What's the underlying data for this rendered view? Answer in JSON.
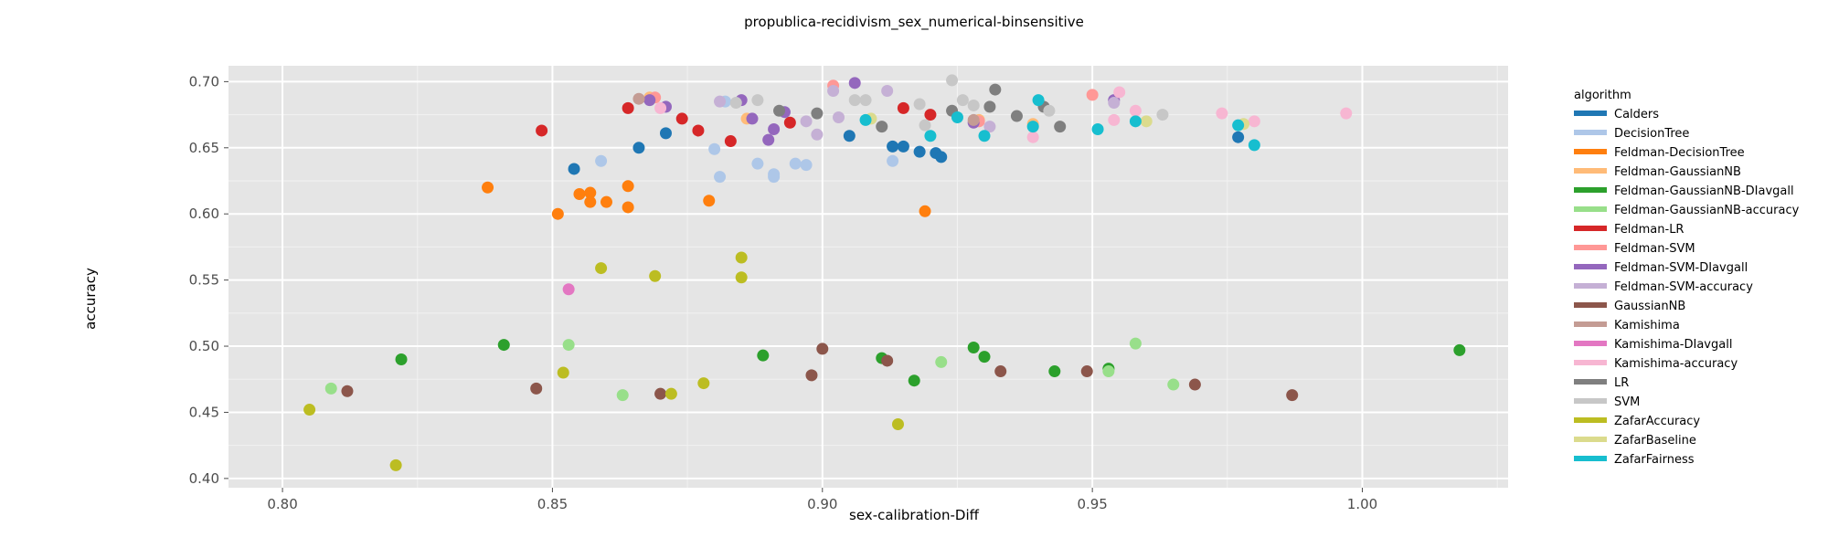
{
  "chart_data": {
    "type": "scatter",
    "title": "propublica-recidivism_sex_numerical-binsensitive",
    "xlabel": "sex-calibration-Diff",
    "ylabel": "accuracy",
    "xlim": [
      0.79,
      1.027
    ],
    "ylim": [
      0.393,
      0.712
    ],
    "xticks": [
      0.8,
      0.85,
      0.9,
      0.95,
      1.0
    ],
    "xtick_labels": [
      "0.80",
      "0.85",
      "0.90",
      "0.95",
      "1.00"
    ],
    "yticks": [
      0.4,
      0.45,
      0.5,
      0.55,
      0.6,
      0.65,
      0.7
    ],
    "ytick_labels": [
      "0.40",
      "0.45",
      "0.50",
      "0.55",
      "0.60",
      "0.65",
      "0.70"
    ],
    "grid": true,
    "legend_title": "algorithm",
    "legend_position": "right",
    "series": [
      {
        "name": "Calders",
        "color": "#1f77b4",
        "points": [
          [
            0.854,
            0.634
          ],
          [
            0.866,
            0.65
          ],
          [
            0.871,
            0.661
          ],
          [
            0.905,
            0.659
          ],
          [
            0.913,
            0.651
          ],
          [
            0.915,
            0.651
          ],
          [
            0.918,
            0.647
          ],
          [
            0.921,
            0.646
          ],
          [
            0.922,
            0.643
          ],
          [
            0.977,
            0.658
          ]
        ]
      },
      {
        "name": "DecisionTree",
        "color": "#aec7e8",
        "points": [
          [
            0.859,
            0.64
          ],
          [
            0.88,
            0.649
          ],
          [
            0.881,
            0.628
          ],
          [
            0.888,
            0.638
          ],
          [
            0.891,
            0.628
          ],
          [
            0.891,
            0.63
          ],
          [
            0.895,
            0.638
          ],
          [
            0.897,
            0.637
          ],
          [
            0.913,
            0.64
          ],
          [
            0.882,
            0.685
          ],
          [
            0.893,
            0.677
          ]
        ]
      },
      {
        "name": "Feldman-DecisionTree",
        "color": "#ff7f0e",
        "points": [
          [
            0.838,
            0.62
          ],
          [
            0.851,
            0.6
          ],
          [
            0.855,
            0.615
          ],
          [
            0.857,
            0.616
          ],
          [
            0.857,
            0.609
          ],
          [
            0.86,
            0.609
          ],
          [
            0.864,
            0.605
          ],
          [
            0.864,
            0.621
          ],
          [
            0.879,
            0.61
          ],
          [
            0.919,
            0.602
          ]
        ]
      },
      {
        "name": "Feldman-GaussianNB",
        "color": "#ffbb78",
        "points": [
          [
            0.868,
            0.688
          ],
          [
            0.886,
            0.672
          ],
          [
            0.929,
            0.671
          ],
          [
            0.939,
            0.668
          ]
        ]
      },
      {
        "name": "Feldman-GaussianNB-DIavgall",
        "color": "#2ca02c",
        "points": [
          [
            0.822,
            0.49
          ],
          [
            0.841,
            0.501
          ],
          [
            0.889,
            0.493
          ],
          [
            0.911,
            0.491
          ],
          [
            0.917,
            0.474
          ],
          [
            0.928,
            0.499
          ],
          [
            0.93,
            0.492
          ],
          [
            0.943,
            0.481
          ],
          [
            0.953,
            0.483
          ],
          [
            1.018,
            0.497
          ]
        ]
      },
      {
        "name": "Feldman-GaussianNB-accuracy",
        "color": "#98df8a",
        "points": [
          [
            0.809,
            0.468
          ],
          [
            0.853,
            0.501
          ],
          [
            0.863,
            0.463
          ],
          [
            0.922,
            0.488
          ],
          [
            0.953,
            0.481
          ],
          [
            0.958,
            0.502
          ],
          [
            0.965,
            0.471
          ]
        ]
      },
      {
        "name": "Feldman-LR",
        "color": "#d62728",
        "points": [
          [
            0.848,
            0.663
          ],
          [
            0.864,
            0.68
          ],
          [
            0.874,
            0.672
          ],
          [
            0.877,
            0.663
          ],
          [
            0.883,
            0.655
          ],
          [
            0.894,
            0.669
          ],
          [
            0.915,
            0.68
          ],
          [
            0.92,
            0.675
          ]
        ]
      },
      {
        "name": "Feldman-SVM",
        "color": "#ff9896",
        "points": [
          [
            0.869,
            0.688
          ],
          [
            0.902,
            0.697
          ],
          [
            0.929,
            0.67
          ],
          [
            0.95,
            0.69
          ]
        ]
      },
      {
        "name": "Feldman-SVM-DIavgall",
        "color": "#9467bd",
        "points": [
          [
            0.868,
            0.686
          ],
          [
            0.871,
            0.681
          ],
          [
            0.885,
            0.686
          ],
          [
            0.887,
            0.672
          ],
          [
            0.89,
            0.656
          ],
          [
            0.891,
            0.664
          ],
          [
            0.893,
            0.677
          ],
          [
            0.906,
            0.699
          ],
          [
            0.928,
            0.669
          ],
          [
            0.954,
            0.686
          ]
        ]
      },
      {
        "name": "Feldman-SVM-accuracy",
        "color": "#c5b0d5",
        "points": [
          [
            0.881,
            0.685
          ],
          [
            0.897,
            0.67
          ],
          [
            0.899,
            0.66
          ],
          [
            0.902,
            0.693
          ],
          [
            0.903,
            0.673
          ],
          [
            0.912,
            0.693
          ],
          [
            0.931,
            0.666
          ],
          [
            0.954,
            0.684
          ]
        ]
      },
      {
        "name": "GaussianNB",
        "color": "#8c564b",
        "points": [
          [
            0.812,
            0.466
          ],
          [
            0.847,
            0.468
          ],
          [
            0.87,
            0.464
          ],
          [
            0.898,
            0.478
          ],
          [
            0.9,
            0.498
          ],
          [
            0.912,
            0.489
          ],
          [
            0.933,
            0.481
          ],
          [
            0.949,
            0.481
          ],
          [
            0.969,
            0.471
          ],
          [
            0.987,
            0.463
          ]
        ]
      },
      {
        "name": "Kamishima",
        "color": "#c49c94",
        "points": [
          [
            0.866,
            0.687
          ],
          [
            0.928,
            0.671
          ]
        ]
      },
      {
        "name": "Kamishima-DIavgall",
        "color": "#e377c2",
        "points": [
          [
            0.853,
            0.543
          ]
        ]
      },
      {
        "name": "Kamishima-accuracy",
        "color": "#f7b6d2",
        "points": [
          [
            0.87,
            0.68
          ],
          [
            0.939,
            0.658
          ],
          [
            0.954,
            0.671
          ],
          [
            0.955,
            0.692
          ],
          [
            0.958,
            0.678
          ],
          [
            0.974,
            0.676
          ],
          [
            0.98,
            0.67
          ],
          [
            0.997,
            0.676
          ]
        ]
      },
      {
        "name": "LR",
        "color": "#7f7f7f",
        "points": [
          [
            0.892,
            0.678
          ],
          [
            0.899,
            0.676
          ],
          [
            0.911,
            0.666
          ],
          [
            0.924,
            0.678
          ],
          [
            0.931,
            0.681
          ],
          [
            0.932,
            0.694
          ],
          [
            0.936,
            0.674
          ],
          [
            0.941,
            0.681
          ],
          [
            0.944,
            0.666
          ]
        ]
      },
      {
        "name": "SVM",
        "color": "#c7c7c7",
        "points": [
          [
            0.884,
            0.684
          ],
          [
            0.888,
            0.686
          ],
          [
            0.906,
            0.686
          ],
          [
            0.908,
            0.686
          ],
          [
            0.918,
            0.683
          ],
          [
            0.919,
            0.667
          ],
          [
            0.924,
            0.701
          ],
          [
            0.926,
            0.686
          ],
          [
            0.928,
            0.682
          ],
          [
            0.942,
            0.678
          ],
          [
            0.963,
            0.675
          ]
        ]
      },
      {
        "name": "ZafarAccuracy",
        "color": "#bcbd22",
        "points": [
          [
            0.805,
            0.452
          ],
          [
            0.821,
            0.41
          ],
          [
            0.852,
            0.48
          ],
          [
            0.859,
            0.559
          ],
          [
            0.869,
            0.553
          ],
          [
            0.872,
            0.464
          ],
          [
            0.878,
            0.472
          ],
          [
            0.885,
            0.567
          ],
          [
            0.885,
            0.552
          ],
          [
            0.914,
            0.441
          ]
        ]
      },
      {
        "name": "ZafarBaseline",
        "color": "#dbdb8d",
        "points": [
          [
            0.909,
            0.672
          ],
          [
            0.96,
            0.67
          ],
          [
            0.978,
            0.668
          ]
        ]
      },
      {
        "name": "ZafarFairness",
        "color": "#17becf",
        "points": [
          [
            0.908,
            0.671
          ],
          [
            0.92,
            0.659
          ],
          [
            0.925,
            0.673
          ],
          [
            0.93,
            0.659
          ],
          [
            0.939,
            0.666
          ],
          [
            0.94,
            0.686
          ],
          [
            0.951,
            0.664
          ],
          [
            0.958,
            0.67
          ],
          [
            0.977,
            0.667
          ],
          [
            0.98,
            0.652
          ]
        ]
      }
    ]
  }
}
